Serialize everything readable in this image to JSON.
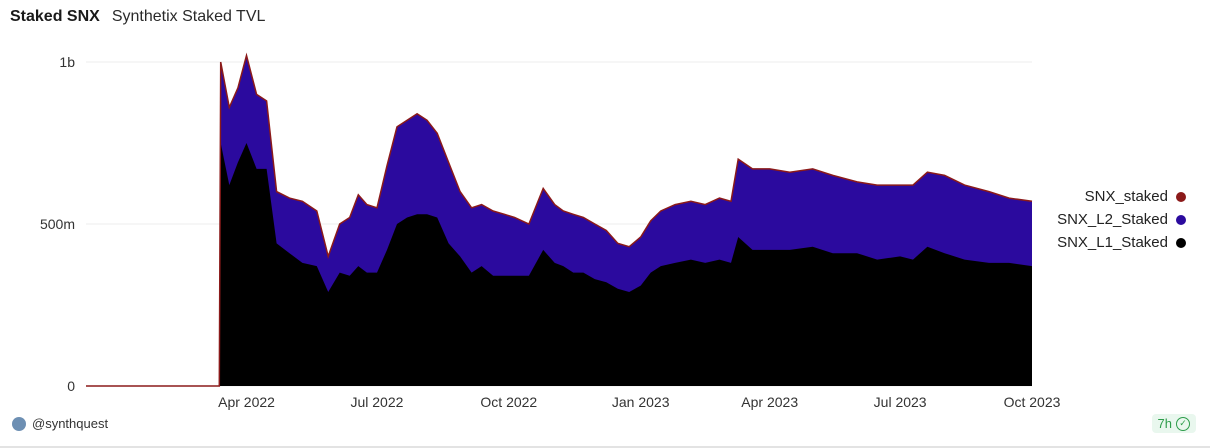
{
  "header": {
    "title": "Staked SNX",
    "subtitle": "Synthetix Staked TVL"
  },
  "footer": {
    "author": "@synthquest",
    "age": "7h"
  },
  "colors": {
    "SNX_staked": "#8b1a1a",
    "SNX_L2_Staked": "#2b0a9e",
    "SNX_L1_Staked": "#000000",
    "grid": "#ececec"
  },
  "chart_data": {
    "type": "area",
    "title": "",
    "xlabel": "",
    "ylabel": "",
    "ylim": [
      0,
      1000000000
    ],
    "yticks": [
      {
        "value": 0,
        "label": "0"
      },
      {
        "value": 500000000,
        "label": "500m"
      },
      {
        "value": 1000000000,
        "label": "1b"
      }
    ],
    "xticks": [
      {
        "date": "2022-04-01",
        "label": "Apr 2022"
      },
      {
        "date": "2022-07-01",
        "label": "Jul 2022"
      },
      {
        "date": "2022-10-01",
        "label": "Oct 2022"
      },
      {
        "date": "2023-01-01",
        "label": "Jan 2023"
      },
      {
        "date": "2023-04-01",
        "label": "Apr 2023"
      },
      {
        "date": "2023-07-01",
        "label": "Jul 2023"
      },
      {
        "date": "2023-10-01",
        "label": "Oct 2023"
      }
    ],
    "xrange": [
      "2021-12-10",
      "2023-10-01"
    ],
    "legend_position": "right",
    "grid": true,
    "x": [
      "2021-12-10",
      "2022-03-13",
      "2022-03-14",
      "2022-03-20",
      "2022-03-26",
      "2022-04-01",
      "2022-04-08",
      "2022-04-15",
      "2022-04-22",
      "2022-05-01",
      "2022-05-10",
      "2022-05-20",
      "2022-05-28",
      "2022-06-05",
      "2022-06-12",
      "2022-06-18",
      "2022-06-24",
      "2022-07-01",
      "2022-07-08",
      "2022-07-15",
      "2022-07-22",
      "2022-07-29",
      "2022-08-05",
      "2022-08-12",
      "2022-08-20",
      "2022-08-28",
      "2022-09-05",
      "2022-09-12",
      "2022-09-20",
      "2022-09-28",
      "2022-10-05",
      "2022-10-15",
      "2022-10-25",
      "2022-11-02",
      "2022-11-08",
      "2022-11-15",
      "2022-11-22",
      "2022-11-30",
      "2022-12-08",
      "2022-12-16",
      "2022-12-24",
      "2023-01-01",
      "2023-01-08",
      "2023-01-15",
      "2023-01-25",
      "2023-02-05",
      "2023-02-15",
      "2023-02-25",
      "2023-03-05",
      "2023-03-10",
      "2023-03-20",
      "2023-04-01",
      "2023-04-15",
      "2023-05-01",
      "2023-05-15",
      "2023-06-01",
      "2023-06-15",
      "2023-07-01",
      "2023-07-10",
      "2023-07-20",
      "2023-08-01",
      "2023-08-15",
      "2023-09-01",
      "2023-09-15",
      "2023-10-01"
    ],
    "series": [
      {
        "name": "SNX_staked",
        "values": [
          0,
          0,
          1000000000,
          860000000,
          920000000,
          1020000000,
          900000000,
          880000000,
          600000000,
          580000000,
          570000000,
          540000000,
          400000000,
          500000000,
          520000000,
          590000000,
          560000000,
          550000000,
          680000000,
          800000000,
          820000000,
          840000000,
          820000000,
          780000000,
          690000000,
          600000000,
          550000000,
          560000000,
          540000000,
          530000000,
          520000000,
          500000000,
          610000000,
          560000000,
          540000000,
          530000000,
          520000000,
          500000000,
          480000000,
          440000000,
          430000000,
          460000000,
          510000000,
          540000000,
          560000000,
          570000000,
          560000000,
          580000000,
          570000000,
          700000000,
          670000000,
          670000000,
          660000000,
          670000000,
          650000000,
          630000000,
          620000000,
          620000000,
          620000000,
          660000000,
          650000000,
          620000000,
          600000000,
          580000000,
          570000000
        ]
      },
      {
        "name": "SNX_L2_Staked",
        "values": [
          0,
          0,
          250000000,
          240000000,
          230000000,
          270000000,
          230000000,
          210000000,
          160000000,
          170000000,
          190000000,
          170000000,
          110000000,
          150000000,
          180000000,
          220000000,
          210000000,
          200000000,
          260000000,
          300000000,
          300000000,
          310000000,
          290000000,
          260000000,
          250000000,
          200000000,
          200000000,
          190000000,
          200000000,
          190000000,
          180000000,
          160000000,
          190000000,
          180000000,
          170000000,
          180000000,
          170000000,
          170000000,
          160000000,
          140000000,
          140000000,
          150000000,
          160000000,
          170000000,
          180000000,
          180000000,
          180000000,
          190000000,
          190000000,
          240000000,
          250000000,
          250000000,
          240000000,
          240000000,
          240000000,
          220000000,
          230000000,
          220000000,
          230000000,
          230000000,
          240000000,
          230000000,
          220000000,
          200000000,
          200000000
        ]
      },
      {
        "name": "SNX_L1_Staked",
        "values": [
          0,
          0,
          750000000,
          620000000,
          690000000,
          750000000,
          670000000,
          670000000,
          440000000,
          410000000,
          380000000,
          370000000,
          290000000,
          350000000,
          340000000,
          370000000,
          350000000,
          350000000,
          420000000,
          500000000,
          520000000,
          530000000,
          530000000,
          520000000,
          440000000,
          400000000,
          350000000,
          370000000,
          340000000,
          340000000,
          340000000,
          340000000,
          420000000,
          380000000,
          370000000,
          350000000,
          350000000,
          330000000,
          320000000,
          300000000,
          290000000,
          310000000,
          350000000,
          370000000,
          380000000,
          390000000,
          380000000,
          390000000,
          380000000,
          460000000,
          420000000,
          420000000,
          420000000,
          430000000,
          410000000,
          410000000,
          390000000,
          400000000,
          390000000,
          430000000,
          410000000,
          390000000,
          380000000,
          380000000,
          370000000
        ]
      }
    ]
  }
}
